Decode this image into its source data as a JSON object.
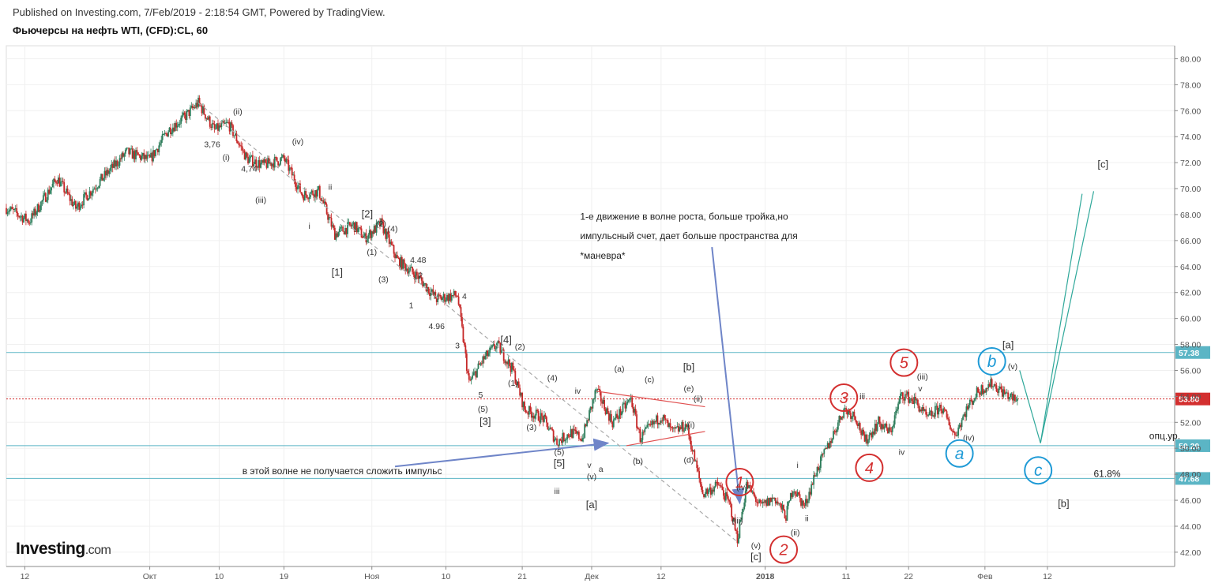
{
  "header": {
    "published": "Published on Investing.com, 7/Feb/2019 - 2:18:54 GMT, Powered by TradingView.",
    "title": "Фьючерсы на нефть WTI, (CFD):CL, 60"
  },
  "logo": {
    "main": "Investing",
    "suffix": ".com"
  },
  "chart_data": {
    "type": "candlestick",
    "yaxis": {
      "ylim": [
        40.9,
        81.0
      ],
      "ticks": [
        42,
        44,
        46,
        48,
        50,
        52,
        54,
        56,
        58,
        60,
        62,
        64,
        66,
        68,
        70,
        72,
        74,
        76,
        78,
        80
      ],
      "tick_labels": [
        "42.00",
        "44.00",
        "46.00",
        "48.00",
        "50.00",
        "52.00",
        "54.00",
        "56.00",
        "58.00",
        "60.00",
        "62.00",
        "64.00",
        "66.00",
        "68.00",
        "70.00",
        "72.00",
        "74.00",
        "76.00",
        "78.00",
        "80.00"
      ]
    },
    "xaxis": {
      "tick_labels": [
        "12",
        "Окт",
        "10",
        "19",
        "Ноя",
        "10",
        "21",
        "Дек",
        "12",
        "2018",
        "11",
        "22",
        "Фев",
        "12"
      ],
      "tick_t": [
        0.8,
        6.2,
        9.2,
        12.0,
        15.8,
        19.0,
        22.3,
        25.3,
        28.3,
        32.8,
        36.3,
        39.0,
        42.3,
        45.0
      ]
    },
    "levels": [
      {
        "value": 57.38,
        "label": "57.38",
        "color": "#5bb5c5",
        "style": "solid"
      },
      {
        "value": 53.8,
        "label": "53.80",
        "color": "#d32f2f",
        "style": "dotted"
      },
      {
        "value": 50.2,
        "label": "50.20",
        "color": "#5bb5c5",
        "style": "solid"
      },
      {
        "value": 47.68,
        "label": "47.68",
        "color": "#5bb5c5",
        "style": "solid"
      }
    ],
    "price_path": [
      [
        0.0,
        68.5
      ],
      [
        1.0,
        67.5
      ],
      [
        2.2,
        70.8
      ],
      [
        3.0,
        68.5
      ],
      [
        4.0,
        70.5
      ],
      [
        5.2,
        72.8
      ],
      [
        6.2,
        72.2
      ],
      [
        7.0,
        74.5
      ],
      [
        7.7,
        75.5
      ],
      [
        8.3,
        76.6
      ],
      [
        9.0,
        74.5
      ],
      [
        9.6,
        75.0
      ],
      [
        10.4,
        72.3
      ],
      [
        11.1,
        71.8
      ],
      [
        12.0,
        72.3
      ],
      [
        12.8,
        69.5
      ],
      [
        13.5,
        69.8
      ],
      [
        14.2,
        66.5
      ],
      [
        15.0,
        67.2
      ],
      [
        15.5,
        66.2
      ],
      [
        16.2,
        67.3
      ],
      [
        16.9,
        64.5
      ],
      [
        17.8,
        63.2
      ],
      [
        18.6,
        61.5
      ],
      [
        19.5,
        61.8
      ],
      [
        20.0,
        55.0
      ],
      [
        20.6,
        56.8
      ],
      [
        21.2,
        58.0
      ],
      [
        21.9,
        56.0
      ],
      [
        22.4,
        53.0
      ],
      [
        23.2,
        52.3
      ],
      [
        23.8,
        50.5
      ],
      [
        24.4,
        51.2
      ],
      [
        24.9,
        50.8
      ],
      [
        25.5,
        54.5
      ],
      [
        26.2,
        52.0
      ],
      [
        27.0,
        53.8
      ],
      [
        27.4,
        50.8
      ],
      [
        28.3,
        52.5
      ],
      [
        28.8,
        51.2
      ],
      [
        29.4,
        51.8
      ],
      [
        30.1,
        46.5
      ],
      [
        30.8,
        47.2
      ],
      [
        31.3,
        45.5
      ],
      [
        31.6,
        43.0
      ],
      [
        32.0,
        47.2
      ],
      [
        32.6,
        45.5
      ],
      [
        33.2,
        46.2
      ],
      [
        33.7,
        44.8
      ],
      [
        34.0,
        47.0
      ],
      [
        34.5,
        45.5
      ],
      [
        35.0,
        48.2
      ],
      [
        35.6,
        50.5
      ],
      [
        36.2,
        53.0
      ],
      [
        36.7,
        52.5
      ],
      [
        37.1,
        50.5
      ],
      [
        37.7,
        52.0
      ],
      [
        38.2,
        51.2
      ],
      [
        38.7,
        54.2
      ],
      [
        39.3,
        53.6
      ],
      [
        39.8,
        52.3
      ],
      [
        40.4,
        53.2
      ],
      [
        41.0,
        51.0
      ],
      [
        41.5,
        53.0
      ],
      [
        42.0,
        54.4
      ],
      [
        42.6,
        55.0
      ],
      [
        43.1,
        54.3
      ],
      [
        43.7,
        53.6
      ]
    ],
    "trend_lines": [
      {
        "from": [
          8.3,
          76.6
        ],
        "to": [
          31.6,
          42.8
        ],
        "color": "#aaaaaa",
        "dash": true
      },
      {
        "from": [
          30.5,
          65.5
        ],
        "to": [
          31.7,
          45.8
        ],
        "color": "#6f85c8",
        "arrow": true
      },
      {
        "from": [
          16.8,
          48.6
        ],
        "to": [
          26.0,
          50.4
        ],
        "color": "#6f85c8",
        "arrow": true
      },
      {
        "from": [
          25.5,
          54.4
        ],
        "to": [
          30.2,
          53.2
        ],
        "color": "#e05050"
      },
      {
        "from": [
          26.8,
          50.2
        ],
        "to": [
          30.2,
          51.3
        ],
        "color": "#e05050"
      },
      {
        "from": [
          43.8,
          56.0
        ],
        "to": [
          44.7,
          50.4
        ],
        "color": "#2fa89a"
      },
      {
        "from": [
          44.7,
          50.4
        ],
        "to": [
          46.5,
          69.6
        ],
        "color": "#2fa89a"
      },
      {
        "from": [
          44.7,
          50.4
        ],
        "to": [
          47.0,
          69.8
        ],
        "color": "#2fa89a"
      }
    ],
    "waves_major": [
      {
        "label": "1",
        "t": 31.7,
        "v": 47.4
      },
      {
        "label": "2",
        "t": 33.6,
        "v": 42.2
      },
      {
        "label": "3",
        "t": 36.2,
        "v": 53.9
      },
      {
        "label": "4",
        "t": 37.3,
        "v": 48.5
      },
      {
        "label": "5",
        "t": 38.8,
        "v": 56.6
      }
    ],
    "waves_abc": [
      {
        "label": "a",
        "t": 41.2,
        "v": 49.6
      },
      {
        "label": "b",
        "t": 42.6,
        "v": 56.7
      },
      {
        "label": "c",
        "t": 44.6,
        "v": 48.3
      }
    ],
    "wave_labels": [
      {
        "label": "(ii)",
        "t": 10.0,
        "v": 75.7
      },
      {
        "label": "3,76",
        "t": 8.9,
        "v": 73.2
      },
      {
        "label": "(i)",
        "t": 9.5,
        "v": 72.2
      },
      {
        "label": "(iv)",
        "t": 12.6,
        "v": 73.4
      },
      {
        "label": "4,74",
        "t": 10.5,
        "v": 71.3
      },
      {
        "label": "(iii)",
        "t": 11.0,
        "v": 68.9
      },
      {
        "label": "ii",
        "t": 14.0,
        "v": 69.9
      },
      {
        "label": "i",
        "t": 13.1,
        "v": 66.9
      },
      {
        "label": "[2]",
        "t": 15.6,
        "v": 67.8
      },
      {
        "label": "(2)",
        "t": 16.2,
        "v": 67.1
      },
      {
        "label": "(4)",
        "t": 16.7,
        "v": 66.7
      },
      {
        "label": "(1)",
        "t": 15.8,
        "v": 64.9
      },
      {
        "label": "[1]",
        "t": 14.3,
        "v": 63.3
      },
      {
        "label": "(3)",
        "t": 16.3,
        "v": 62.8
      },
      {
        "label": "4.48",
        "t": 17.8,
        "v": 64.3
      },
      {
        "label": "2",
        "t": 17.9,
        "v": 63.1
      },
      {
        "label": "1",
        "t": 17.5,
        "v": 60.8
      },
      {
        "label": "4",
        "t": 19.8,
        "v": 61.5
      },
      {
        "label": "4.96",
        "t": 18.6,
        "v": 59.2
      },
      {
        "label": "3",
        "t": 19.5,
        "v": 57.7
      },
      {
        "label": "[4]",
        "t": 21.6,
        "v": 58.1
      },
      {
        "label": "(2)",
        "t": 22.2,
        "v": 57.6
      },
      {
        "label": "(4)",
        "t": 23.6,
        "v": 55.2
      },
      {
        "label": "(1)",
        "t": 21.9,
        "v": 54.8
      },
      {
        "label": "5",
        "t": 20.5,
        "v": 53.9
      },
      {
        "label": "(5)",
        "t": 20.6,
        "v": 52.8
      },
      {
        "label": "[3]",
        "t": 20.7,
        "v": 51.8
      },
      {
        "label": "(3)",
        "t": 22.7,
        "v": 51.4
      },
      {
        "label": "(5)",
        "t": 23.9,
        "v": 49.5
      },
      {
        "label": "[5]",
        "t": 23.9,
        "v": 48.6
      },
      {
        "label": "iii",
        "t": 23.8,
        "v": 46.5
      },
      {
        "label": "iv",
        "t": 24.7,
        "v": 54.2
      },
      {
        "label": "v",
        "t": 25.2,
        "v": 48.5
      },
      {
        "label": "a",
        "t": 25.7,
        "v": 48.2
      },
      {
        "label": "(v)",
        "t": 25.3,
        "v": 47.6
      },
      {
        "label": "[a]",
        "t": 25.3,
        "v": 45.4
      },
      {
        "label": "(a)",
        "t": 26.5,
        "v": 55.9
      },
      {
        "label": "(c)",
        "t": 27.8,
        "v": 55.1
      },
      {
        "label": "[b]",
        "t": 29.5,
        "v": 56.0
      },
      {
        "label": "(e)",
        "t": 29.5,
        "v": 54.4
      },
      {
        "label": "(ii)",
        "t": 29.9,
        "v": 53.6
      },
      {
        "label": "(i)",
        "t": 29.6,
        "v": 51.6
      },
      {
        "label": "(b)",
        "t": 27.3,
        "v": 48.8
      },
      {
        "label": "(d)",
        "t": 29.5,
        "v": 48.9
      },
      {
        "label": "(iv)",
        "t": 31.8,
        "v": 46.8
      },
      {
        "label": "(iii)",
        "t": 31.6,
        "v": 44.2
      },
      {
        "label": "(v)",
        "t": 32.4,
        "v": 42.3
      },
      {
        "label": "[c]",
        "t": 32.4,
        "v": 41.4
      },
      {
        "label": "i",
        "t": 34.2,
        "v": 48.5
      },
      {
        "label": "ii",
        "t": 34.6,
        "v": 44.4
      },
      {
        "label": "(ii)",
        "t": 34.1,
        "v": 43.3
      },
      {
        "label": "iii",
        "t": 37.0,
        "v": 53.8
      },
      {
        "label": "iv",
        "t": 38.7,
        "v": 49.5
      },
      {
        "label": "(iii)",
        "t": 39.6,
        "v": 55.3
      },
      {
        "label": "v",
        "t": 39.5,
        "v": 54.4
      },
      {
        "label": "(iv)",
        "t": 41.6,
        "v": 50.6
      },
      {
        "label": "[a]",
        "t": 43.3,
        "v": 57.7
      },
      {
        "label": "(v)",
        "t": 43.5,
        "v": 56.1
      },
      {
        "label": "[c]",
        "t": 47.4,
        "v": 71.6
      },
      {
        "label": "[b]",
        "t": 45.7,
        "v": 45.5
      }
    ],
    "annotations": [
      {
        "text": "1-е движение в волне роста, больше тройка,но",
        "t": 24.8,
        "v": 67.6
      },
      {
        "text": "импульсный счет, дает больше пространства для",
        "t": 24.8,
        "v": 66.1
      },
      {
        "text": "*маневра*",
        "t": 24.8,
        "v": 64.6
      },
      {
        "text": "в этой волне не получается сложить импульс",
        "t": 10.2,
        "v": 48.0
      },
      {
        "text": "опц.ур.",
        "t": 49.4,
        "v": 50.7
      },
      {
        "text": "61.8%",
        "t": 47.0,
        "v": 47.8
      }
    ]
  },
  "colors": {
    "candle_up": "#2e7d5b",
    "candle_down": "#c62828",
    "major_wave": "#d32f2f",
    "abc_wave": "#1e9ad6",
    "axis_text": "#555555"
  }
}
